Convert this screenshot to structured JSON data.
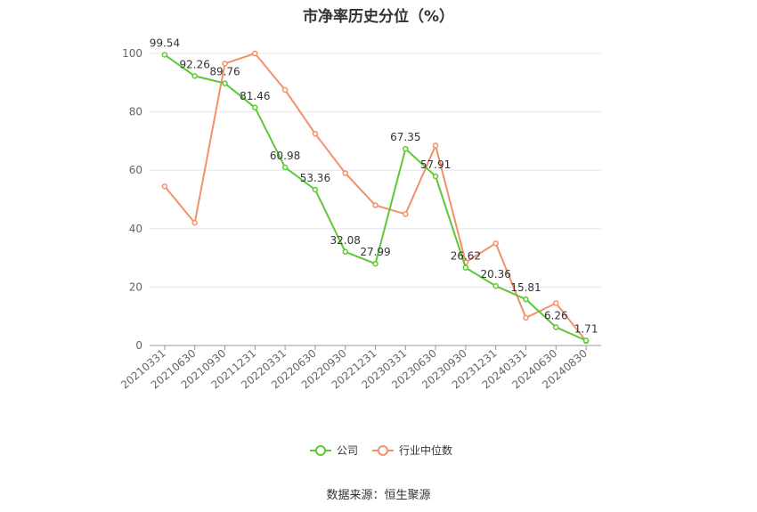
{
  "title": "市净率历史分位（%）",
  "source": "数据来源：恒生聚源",
  "chart_data": {
    "type": "line",
    "title": "市净率历史分位（%）",
    "categories": [
      "20210331",
      "20210630",
      "20210930",
      "20211231",
      "20220331",
      "20220630",
      "20220930",
      "20221231",
      "20230331",
      "20230630",
      "20230930",
      "20231231",
      "20240331",
      "20240630",
      "20240830"
    ],
    "ylim": [
      0,
      100
    ],
    "yticks": [
      0,
      20,
      40,
      60,
      80,
      100
    ],
    "grid": true,
    "legend_position": "bottom",
    "series": [
      {
        "name": "公司",
        "color": "#5cc934",
        "labels": true,
        "values": [
          99.54,
          92.26,
          89.76,
          81.46,
          60.98,
          53.36,
          32.08,
          27.99,
          67.35,
          57.91,
          26.62,
          20.36,
          15.81,
          6.26,
          1.71
        ]
      },
      {
        "name": "行业中位数",
        "color": "#f2906a",
        "labels": false,
        "values": [
          54.5,
          42,
          96.5,
          100,
          87.5,
          72.5,
          59,
          48,
          45,
          68.5,
          28.5,
          35,
          9.5,
          14.5,
          1.5
        ]
      }
    ]
  }
}
